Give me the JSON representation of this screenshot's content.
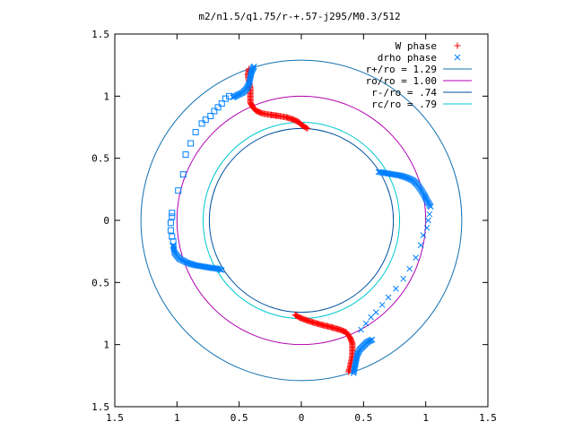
{
  "chart_data": {
    "type": "scatter",
    "title": "m2/n1.5/q1.75/r-+.57-j295/M0.3/512",
    "xlim": [
      -1.5,
      1.5
    ],
    "ylim": [
      -1.5,
      1.5
    ],
    "x_ticks": [
      -1.5,
      -1,
      -0.5,
      0,
      0.5,
      1,
      1.5
    ],
    "x_tick_labels": [
      "1.5",
      "1",
      "0.5",
      "0",
      "0.5",
      "1",
      "1.5"
    ],
    "y_ticks": [
      1.5,
      1,
      0.5,
      0,
      -0.5,
      -1,
      -1.5
    ],
    "y_tick_labels": [
      "1.5",
      "1",
      "0.5",
      "0",
      "0.5",
      "1",
      "1.5"
    ],
    "grid": false,
    "legend": "top-right",
    "series": [
      {
        "name": "W phase",
        "marker": "plus",
        "color": "#ff0000",
        "segments": [
          [
            [
              -0.42,
              1.22
            ],
            [
              -0.43,
              1.17
            ],
            [
              -0.42,
              1.12
            ],
            [
              -0.41,
              1.06
            ],
            [
              -0.41,
              1.0
            ],
            [
              -0.41,
              0.95
            ],
            [
              -0.39,
              0.91
            ],
            [
              -0.36,
              0.88
            ],
            [
              -0.31,
              0.86
            ],
            [
              -0.25,
              0.85
            ],
            [
              -0.18,
              0.84
            ],
            [
              -0.12,
              0.83
            ],
            [
              -0.06,
              0.81
            ],
            [
              -0.02,
              0.79
            ],
            [
              0.0,
              0.77
            ],
            [
              0.03,
              0.75
            ],
            [
              0.05,
              0.74
            ]
          ],
          [
            [
              -0.05,
              -0.76
            ],
            [
              -0.02,
              -0.78
            ],
            [
              0.03,
              -0.8
            ],
            [
              0.09,
              -0.82
            ],
            [
              0.16,
              -0.84
            ],
            [
              0.24,
              -0.86
            ],
            [
              0.31,
              -0.88
            ],
            [
              0.36,
              -0.9
            ],
            [
              0.39,
              -0.94
            ],
            [
              0.41,
              -0.99
            ],
            [
              0.41,
              -1.04
            ],
            [
              0.41,
              -1.09
            ],
            [
              0.4,
              -1.14
            ],
            [
              0.39,
              -1.19
            ],
            [
              0.38,
              -1.22
            ]
          ]
        ]
      },
      {
        "name": "drho phase",
        "marker": "cross",
        "color": "#0080ff",
        "segments": [
          [
            [
              -0.38,
              1.24
            ],
            [
              -0.4,
              1.2
            ],
            [
              -0.41,
              1.15
            ],
            [
              -0.42,
              1.1
            ],
            [
              -0.44,
              1.06
            ],
            [
              -0.47,
              1.03
            ],
            [
              -0.51,
              1.01
            ],
            [
              -0.55,
              0.99
            ]
          ],
          [
            [
              0.62,
              0.39
            ],
            [
              0.68,
              0.38
            ],
            [
              0.74,
              0.37
            ],
            [
              0.8,
              0.36
            ],
            [
              0.86,
              0.34
            ],
            [
              0.9,
              0.32
            ],
            [
              0.93,
              0.29
            ],
            [
              0.96,
              0.25
            ],
            [
              0.99,
              0.2
            ],
            [
              1.01,
              0.16
            ],
            [
              1.04,
              0.11
            ]
          ],
          [
            [
              -1.03,
              -0.2
            ],
            [
              -1.02,
              -0.26
            ],
            [
              -0.98,
              -0.31
            ],
            [
              -0.92,
              -0.34
            ],
            [
              -0.86,
              -0.36
            ],
            [
              -0.8,
              -0.37
            ],
            [
              -0.74,
              -0.38
            ],
            [
              -0.67,
              -0.39
            ],
            [
              -0.64,
              -0.4
            ]
          ],
          [
            [
              0.42,
              -1.23
            ],
            [
              0.43,
              -1.18
            ],
            [
              0.44,
              -1.13
            ],
            [
              0.45,
              -1.08
            ],
            [
              0.47,
              -1.04
            ],
            [
              0.5,
              -1.01
            ],
            [
              0.53,
              -0.98
            ],
            [
              0.57,
              -0.96
            ]
          ]
        ],
        "sparse": [
          [
            1.03,
            0.05
          ],
          [
            1.02,
            0.0
          ],
          [
            1.01,
            -0.06
          ],
          [
            0.98,
            -0.12
          ],
          [
            0.96,
            -0.2
          ],
          [
            0.92,
            -0.3
          ],
          [
            0.87,
            -0.39
          ],
          [
            0.82,
            -0.47
          ],
          [
            0.76,
            -0.55
          ],
          [
            0.7,
            -0.62
          ],
          [
            0.65,
            -0.68
          ],
          [
            0.6,
            -0.74
          ],
          [
            0.56,
            -0.78
          ],
          [
            0.52,
            -0.83
          ],
          [
            0.48,
            -0.88
          ]
        ]
      },
      {
        "name": "",
        "marker": "square",
        "color": "#0080ff",
        "points": [
          [
            -0.58,
            1.0
          ],
          [
            -0.61,
            0.98
          ],
          [
            -0.64,
            0.94
          ],
          [
            -0.67,
            0.91
          ],
          [
            -0.7,
            0.88
          ],
          [
            -0.73,
            0.84
          ],
          [
            -0.77,
            0.81
          ],
          [
            -0.8,
            0.78
          ],
          [
            -0.85,
            0.71
          ],
          [
            -0.89,
            0.62
          ],
          [
            -0.93,
            0.53
          ],
          [
            -0.95,
            0.37
          ],
          [
            -0.99,
            0.24
          ],
          [
            -1.04,
            0.06
          ],
          [
            -1.04,
            0.03
          ],
          [
            -1.05,
            -0.02
          ],
          [
            -1.05,
            -0.08
          ],
          [
            -1.04,
            -0.13
          ],
          [
            -1.03,
            -0.17
          ]
        ]
      },
      {
        "name": "r+/ro = 1.29",
        "type": "circle",
        "r": 1.29,
        "color": "#1070b0"
      },
      {
        "name": "ro/ro = 1.00",
        "type": "circle",
        "r": 1.0,
        "color": "#b000b0"
      },
      {
        "name": "r-/ro = .74",
        "type": "circle",
        "r": 0.74,
        "color": "#0050a0"
      },
      {
        "name": "rc/ro = .79",
        "type": "circle",
        "r": 0.79,
        "color": "#00c8d0"
      }
    ]
  }
}
